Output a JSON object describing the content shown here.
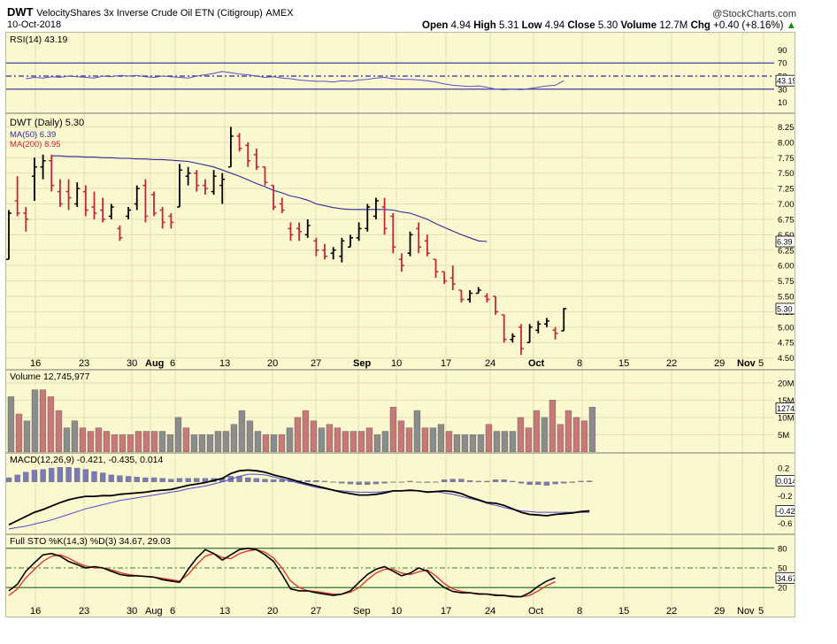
{
  "header": {
    "symbol": "DWT",
    "name": "VelocityShares 3x Inverse Crude Oil ETN (Citigroup)",
    "exchange": "AMEX",
    "date": "10-Oct-2018",
    "brand": "@StockCharts.com",
    "open_label": "Open",
    "open": "4.94",
    "high_label": "High",
    "high": "5.31",
    "low_label": "Low",
    "low": "4.94",
    "close_label": "Close",
    "close": "5.30",
    "volume_label": "Volume",
    "volume": "12.7M",
    "chg_label": "Chg",
    "chg": "+0.40 (+8.16%)",
    "chg_arrow": "▲"
  },
  "colors": {
    "up": "#000000",
    "down": "#c0283c",
    "ma50": "#2a2a9a",
    "rsi": "#5252c8",
    "vol_up": "#8c8c8c",
    "vol_down": "#c87878",
    "panel_bg": "#fbf7cf"
  },
  "chart_data": [
    {
      "type": "line",
      "panel": "rsi",
      "title": "RSI(14) 43.19",
      "y_ticks": [
        "90",
        "70",
        "50",
        "30",
        "10"
      ],
      "ylim": [
        0,
        100
      ],
      "reference_lines": [
        70,
        50,
        30
      ],
      "current_label": "43.19",
      "series": [
        {
          "values": [
            46,
            48,
            47,
            49,
            48,
            50,
            49,
            48,
            47,
            50,
            49,
            51,
            50,
            51,
            49,
            48,
            50,
            49,
            48,
            47,
            50,
            52,
            54,
            57,
            55,
            53,
            52,
            50,
            48,
            49,
            47,
            46,
            44,
            43,
            42,
            42,
            41,
            43,
            42,
            44,
            45,
            47,
            48,
            46,
            45,
            45,
            44,
            43,
            41,
            38,
            36,
            35,
            34,
            35,
            33,
            30,
            29,
            30,
            29,
            31,
            33,
            35,
            36,
            43
          ]
        }
      ]
    },
    {
      "type": "ohlc",
      "panel": "price",
      "title": "DWT (Daily) 5.30",
      "legend": [
        "MA(50) 6.39",
        "MA(200) 8.95"
      ],
      "y_ticks": [
        "8.25",
        "8.00",
        "7.75",
        "7.50",
        "7.25",
        "7.00",
        "6.75",
        "6.50",
        "6.25",
        "6.00",
        "5.75",
        "5.50",
        "5.25",
        "5.00",
        "4.75",
        "4.50"
      ],
      "ylim": [
        4.38,
        8.4
      ],
      "current_label": "5.30",
      "ma50_label": "6.39",
      "ohlc": [
        [
          6.1,
          6.9,
          6.1,
          6.85
        ],
        [
          7.05,
          7.45,
          6.8,
          6.85
        ],
        [
          6.85,
          6.95,
          6.55,
          6.75
        ],
        [
          7.45,
          7.75,
          7.05,
          7.6
        ],
        [
          7.6,
          7.8,
          7.4,
          7.7
        ],
        [
          7.7,
          7.8,
          7.2,
          7.3
        ],
        [
          7.2,
          7.4,
          6.95,
          7.0
        ],
        [
          7.2,
          7.4,
          6.9,
          7.1
        ],
        [
          7.0,
          7.35,
          6.95,
          7.25
        ],
        [
          7.2,
          7.3,
          6.8,
          6.9
        ],
        [
          6.95,
          7.2,
          6.75,
          6.85
        ],
        [
          6.9,
          7.1,
          6.7,
          6.75
        ],
        [
          6.8,
          7.0,
          6.75,
          6.95
        ],
        [
          6.6,
          6.65,
          6.4,
          6.45
        ],
        [
          6.8,
          6.95,
          6.75,
          6.9
        ],
        [
          7.0,
          7.3,
          6.9,
          7.25
        ],
        [
          7.3,
          7.4,
          6.7,
          6.8
        ],
        [
          7.15,
          7.2,
          6.8,
          6.85
        ],
        [
          6.9,
          6.95,
          6.6,
          6.7
        ],
        [
          6.8,
          6.85,
          6.6,
          6.7
        ],
        [
          6.95,
          7.65,
          6.95,
          7.55
        ],
        [
          7.45,
          7.6,
          7.3,
          7.5
        ],
        [
          7.5,
          7.55,
          7.2,
          7.3
        ],
        [
          7.3,
          7.4,
          7.15,
          7.25
        ],
        [
          7.2,
          7.55,
          7.15,
          7.45
        ],
        [
          7.3,
          7.5,
          7.0,
          7.4
        ],
        [
          7.6,
          8.25,
          7.6,
          8.1
        ],
        [
          8.1,
          8.15,
          7.85,
          7.9
        ],
        [
          7.95,
          8.0,
          7.6,
          7.7
        ],
        [
          7.8,
          7.9,
          7.55,
          7.6
        ],
        [
          7.6,
          7.6,
          7.3,
          7.35
        ],
        [
          7.3,
          7.3,
          6.9,
          6.95
        ],
        [
          7.0,
          7.1,
          6.85,
          6.9
        ],
        [
          6.6,
          6.7,
          6.4,
          6.5
        ],
        [
          6.6,
          6.7,
          6.4,
          6.55
        ],
        [
          6.5,
          6.75,
          6.45,
          6.65
        ],
        [
          6.4,
          6.45,
          6.15,
          6.25
        ],
        [
          6.25,
          6.35,
          6.1,
          6.15
        ],
        [
          6.2,
          6.3,
          6.1,
          6.25
        ],
        [
          6.15,
          6.45,
          6.05,
          6.4
        ],
        [
          6.3,
          6.5,
          6.3,
          6.45
        ],
        [
          6.45,
          6.7,
          6.4,
          6.6
        ],
        [
          6.6,
          7.0,
          6.55,
          6.95
        ],
        [
          6.8,
          7.1,
          6.75,
          7.05
        ],
        [
          6.95,
          7.1,
          6.5,
          6.6
        ],
        [
          6.8,
          6.85,
          6.2,
          6.3
        ],
        [
          6.1,
          6.2,
          5.9,
          6.0
        ],
        [
          6.2,
          6.55,
          6.15,
          6.5
        ],
        [
          6.6,
          6.7,
          6.2,
          6.3
        ],
        [
          6.4,
          6.5,
          6.15,
          6.2
        ],
        [
          6.1,
          6.1,
          5.8,
          5.9
        ],
        [
          5.9,
          5.9,
          5.7,
          5.75
        ],
        [
          5.8,
          6.0,
          5.6,
          5.7
        ],
        [
          5.6,
          5.6,
          5.4,
          5.45
        ],
        [
          5.45,
          5.6,
          5.4,
          5.55
        ],
        [
          5.55,
          5.65,
          5.55,
          5.6
        ],
        [
          5.5,
          5.55,
          5.4,
          5.45
        ],
        [
          5.5,
          5.5,
          5.2,
          5.25
        ],
        [
          5.2,
          5.2,
          4.75,
          4.8
        ],
        [
          4.8,
          4.9,
          4.75,
          4.85
        ],
        [
          5.0,
          5.05,
          4.55,
          4.65
        ],
        [
          4.75,
          5.05,
          4.75,
          5.0
        ],
        [
          4.95,
          5.1,
          4.9,
          5.05
        ],
        [
          5.05,
          5.15,
          5.0,
          5.1
        ],
        [
          4.95,
          5.0,
          4.8,
          4.9
        ],
        [
          4.94,
          5.31,
          4.94,
          5.3
        ]
      ],
      "ma50": [
        7.78,
        7.78,
        7.77,
        7.77,
        7.76,
        7.76,
        7.75,
        7.75,
        7.74,
        7.74,
        7.73,
        7.73,
        7.72,
        7.72,
        7.71,
        7.7,
        7.69,
        7.66,
        7.63,
        7.6,
        7.55,
        7.5,
        7.45,
        7.39,
        7.33,
        7.28,
        7.22,
        7.18,
        7.13,
        7.1,
        7.06,
        7.0,
        6.97,
        6.94,
        6.92,
        6.91,
        6.91,
        6.91,
        6.91,
        6.91,
        6.9,
        6.87,
        6.85,
        6.8,
        6.75,
        6.68,
        6.62,
        6.56,
        6.5,
        6.45,
        6.4,
        6.39
      ]
    },
    {
      "type": "bar",
      "panel": "volume",
      "title": "Volume 12,745,977",
      "y_ticks": [
        "20M",
        "15M",
        "10M",
        "5M"
      ],
      "ylim": [
        0,
        22
      ],
      "current_label": "12745977",
      "values": [
        16,
        11,
        9,
        18,
        18,
        16,
        12,
        7,
        9,
        7,
        6,
        7,
        6,
        5,
        5,
        5,
        6,
        6,
        6,
        6,
        5,
        10,
        7,
        5,
        5,
        5,
        6,
        6,
        8,
        12,
        9,
        6,
        5,
        5,
        5,
        7,
        10,
        12,
        9,
        7,
        8,
        7,
        6,
        6,
        6,
        7,
        5,
        6,
        13,
        9,
        7,
        12,
        7,
        7,
        8,
        6,
        5,
        5,
        5,
        5,
        8,
        6,
        6,
        6,
        10,
        7,
        12,
        10,
        15,
        8,
        12,
        10,
        9,
        13
      ],
      "down_bars": [
        1,
        4,
        5,
        6,
        9,
        10,
        11,
        12,
        13,
        14,
        15,
        16,
        17,
        18,
        22,
        32,
        34,
        36,
        37,
        38,
        40,
        41,
        42,
        43,
        44,
        45,
        48,
        49,
        50,
        52,
        55,
        60,
        64,
        65,
        66,
        68,
        69,
        70,
        71,
        72
      ],
      "x_ticks": [
        "16",
        "23",
        "30",
        "Aug",
        "6",
        "13",
        "20",
        "27",
        "Sep",
        "10",
        "17",
        "24",
        "Oct",
        "8",
        "15",
        "22",
        "29",
        "Nov",
        "5"
      ]
    },
    {
      "type": "line",
      "panel": "macd",
      "title": "MACD(12,26,9) -0.421, -0.435, 0.014",
      "y_ticks": [
        "0.2",
        "-0.2",
        "-0.6"
      ],
      "ylim": [
        -0.72,
        0.38
      ],
      "current_labels": [
        "0.014",
        "-0.421"
      ],
      "series": [
        {
          "name": "MACD(12,26,9)",
          "values": [
            -0.62,
            -0.56,
            -0.5,
            -0.44,
            -0.4,
            -0.35,
            -0.3,
            -0.26,
            -0.23,
            -0.21,
            -0.21,
            -0.2,
            -0.2,
            -0.18,
            -0.17,
            -0.16,
            -0.15,
            -0.13,
            -0.12,
            -0.11,
            -0.08,
            -0.05,
            -0.03,
            -0.01,
            0.02,
            0.05,
            0.12,
            0.16,
            0.17,
            0.16,
            0.14,
            0.1,
            0.07,
            0.04,
            0.0,
            -0.03,
            -0.06,
            -0.09,
            -0.12,
            -0.15,
            -0.17,
            -0.19,
            -0.19,
            -0.18,
            -0.16,
            -0.13,
            -0.13,
            -0.12,
            -0.13,
            -0.15,
            -0.14,
            -0.13,
            -0.14,
            -0.17,
            -0.22,
            -0.26,
            -0.3,
            -0.31,
            -0.34,
            -0.39,
            -0.44,
            -0.47,
            -0.48,
            -0.49,
            -0.47,
            -0.46,
            -0.45,
            -0.43,
            -0.42
          ]
        },
        {
          "name": "Signal",
          "values": [
            -0.68,
            -0.66,
            -0.64,
            -0.61,
            -0.58,
            -0.55,
            -0.51,
            -0.47,
            -0.43,
            -0.39,
            -0.36,
            -0.33,
            -0.3,
            -0.27,
            -0.25,
            -0.23,
            -0.21,
            -0.19,
            -0.17,
            -0.15,
            -0.13,
            -0.1,
            -0.08,
            -0.06,
            -0.03,
            0.0,
            0.04,
            0.08,
            0.11,
            0.11,
            0.1,
            0.07,
            0.04,
            0.01,
            -0.02,
            -0.05,
            -0.08,
            -0.1,
            -0.12,
            -0.13,
            -0.14,
            -0.15,
            -0.15,
            -0.15,
            -0.14,
            -0.13,
            -0.13,
            -0.13,
            -0.13,
            -0.14,
            -0.14,
            -0.16,
            -0.18,
            -0.21,
            -0.24,
            -0.27,
            -0.31,
            -0.34,
            -0.37,
            -0.4,
            -0.42,
            -0.43,
            -0.44,
            -0.44,
            -0.44,
            -0.44,
            -0.44,
            -0.44,
            -0.44
          ]
        }
      ],
      "histogram": [
        0.06,
        0.1,
        0.14,
        0.17,
        0.18,
        0.2,
        0.21,
        0.21,
        0.2,
        0.18,
        0.15,
        0.13,
        0.1,
        0.09,
        0.08,
        0.07,
        0.06,
        0.06,
        0.05,
        0.04,
        0.05,
        0.05,
        0.05,
        0.05,
        0.05,
        0.05,
        0.08,
        0.08,
        0.06,
        0.05,
        0.04,
        0.03,
        0.03,
        0.03,
        0.02,
        0.02,
        0.02,
        0.01,
        0.0,
        -0.02,
        -0.03,
        -0.04,
        -0.04,
        -0.03,
        -0.02,
        0.0,
        0.0,
        0.01,
        0.0,
        -0.01,
        0.0,
        0.03,
        0.04,
        0.04,
        0.02,
        0.01,
        0.01,
        0.03,
        0.03,
        0.01,
        -0.02,
        -0.04,
        -0.04,
        -0.05,
        -0.03,
        -0.02,
        -0.01,
        0.01,
        0.014
      ]
    },
    {
      "type": "line",
      "panel": "sto",
      "title": "Full STO %K(14,3) %D(3) 34.67, 29.03",
      "y_ticks": [
        "80",
        "50",
        "20"
      ],
      "ylim": [
        0,
        100
      ],
      "reference_lines": [
        80,
        50,
        20
      ],
      "current_labels": [
        "34.67"
      ],
      "series": [
        {
          "name": "%K(14,3)",
          "values": [
            15,
            25,
            45,
            58,
            70,
            72,
            68,
            60,
            55,
            50,
            52,
            50,
            45,
            40,
            38,
            38,
            37,
            36,
            32,
            30,
            28,
            48,
            65,
            78,
            72,
            62,
            70,
            78,
            80,
            78,
            70,
            60,
            40,
            18,
            15,
            15,
            12,
            10,
            8,
            10,
            15,
            28,
            40,
            48,
            52,
            45,
            38,
            42,
            50,
            45,
            30,
            20,
            14,
            12,
            12,
            10,
            10,
            8,
            8,
            6,
            6,
            12,
            22,
            30,
            35
          ]
        },
        {
          "name": "%D(3)",
          "values": [
            8,
            18,
            35,
            48,
            60,
            68,
            70,
            65,
            58,
            53,
            50,
            50,
            47,
            43,
            40,
            38,
            37,
            36,
            34,
            32,
            30,
            40,
            55,
            68,
            72,
            66,
            64,
            72,
            76,
            78,
            74,
            65,
            50,
            30,
            20,
            15,
            14,
            12,
            10,
            10,
            13,
            20,
            32,
            42,
            48,
            48,
            42,
            40,
            44,
            47,
            38,
            26,
            18,
            14,
            12,
            11,
            10,
            9,
            8,
            7,
            6,
            8,
            15,
            23,
            29
          ]
        }
      ],
      "x_ticks": [
        "16",
        "23",
        "30",
        "Aug",
        "6",
        "13",
        "20",
        "27",
        "Sep",
        "10",
        "17",
        "24",
        "Oct",
        "8",
        "15",
        "22",
        "29",
        "Nov",
        "5"
      ]
    }
  ]
}
